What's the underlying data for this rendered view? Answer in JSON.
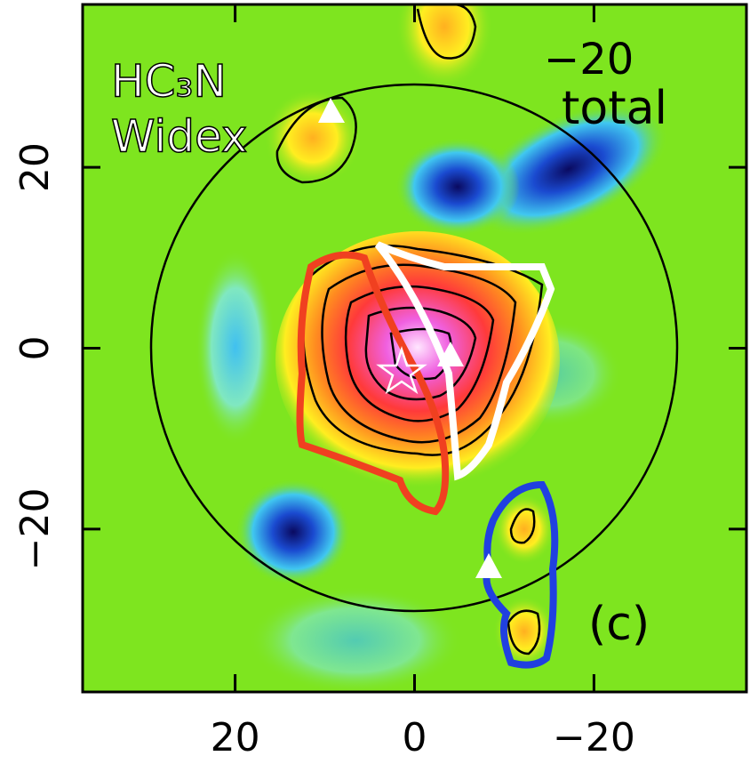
{
  "chart_data": {
    "type": "image",
    "xlim": [
      37,
      -37
    ],
    "ylim": [
      -38,
      38
    ],
    "xticks": [
      20,
      0,
      {
        "value": -20,
        "label": "−20"
      }
    ],
    "yticks": [
      20,
      0,
      {
        "value": -20,
        "label": "−20"
      }
    ],
    "background_color": "#7ee51f",
    "annotations": {
      "molecule": "HC₃N",
      "band": "Widex",
      "component": "total",
      "panel": "(c)",
      "top_tick": "−20"
    }
  }
}
